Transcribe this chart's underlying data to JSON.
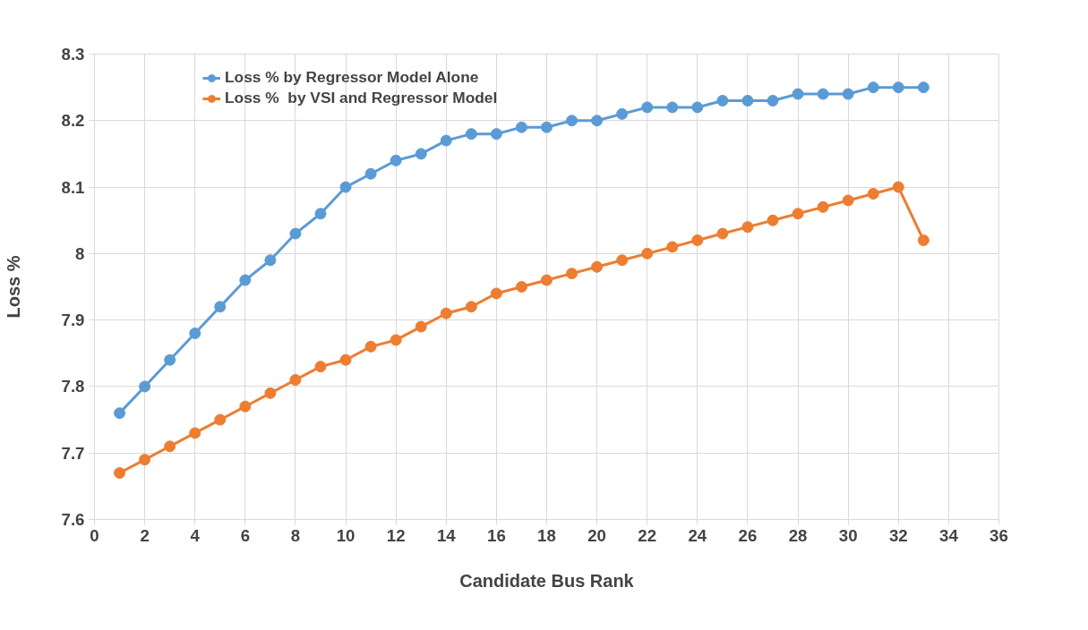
{
  "chart_data": {
    "type": "line",
    "xlabel": "Candidate Bus Rank",
    "ylabel": "Loss %",
    "x": [
      1,
      2,
      3,
      4,
      5,
      6,
      7,
      8,
      9,
      10,
      11,
      12,
      13,
      14,
      15,
      16,
      17,
      18,
      19,
      20,
      21,
      22,
      23,
      24,
      25,
      26,
      27,
      28,
      29,
      30,
      31,
      32,
      33
    ],
    "series": [
      {
        "name": "Loss % by Regressor Model Alone",
        "color": "#5b9bd5",
        "values": [
          7.76,
          7.8,
          7.84,
          7.88,
          7.92,
          7.96,
          7.99,
          8.03,
          8.06,
          8.1,
          8.12,
          8.14,
          8.15,
          8.17,
          8.18,
          8.18,
          8.19,
          8.19,
          8.2,
          8.2,
          8.21,
          8.22,
          8.22,
          8.22,
          8.23,
          8.23,
          8.23,
          8.24,
          8.24,
          8.24,
          8.25,
          8.25,
          8.25
        ]
      },
      {
        "name": "Loss %  by VSI and Regressor Model",
        "color": "#ed7d31",
        "values": [
          7.67,
          7.69,
          7.71,
          7.73,
          7.75,
          7.77,
          7.79,
          7.81,
          7.83,
          7.84,
          7.86,
          7.87,
          7.89,
          7.91,
          7.92,
          7.94,
          7.95,
          7.96,
          7.97,
          7.98,
          7.99,
          8.0,
          8.01,
          8.02,
          8.03,
          8.04,
          8.05,
          8.06,
          8.07,
          8.08,
          8.09,
          8.1,
          8.02
        ]
      }
    ],
    "xlim": [
      0,
      36
    ],
    "xticks": [
      0,
      2,
      4,
      6,
      8,
      10,
      12,
      14,
      16,
      18,
      20,
      22,
      24,
      26,
      28,
      30,
      32,
      34,
      36
    ],
    "ylim": [
      7.6,
      8.3
    ],
    "yticks": [
      {
        "value": 7.6,
        "label": "7.6"
      },
      {
        "value": 7.7,
        "label": "7.7"
      },
      {
        "value": 7.8,
        "label": "7.8"
      },
      {
        "value": 7.9,
        "label": "7.9"
      },
      {
        "value": 8,
        "label": "8"
      },
      {
        "value": 8.1,
        "label": "8.1"
      },
      {
        "value": 8.2,
        "label": "8.2"
      },
      {
        "value": 8.3,
        "label": "8.3"
      }
    ],
    "grid": true,
    "legend": "top",
    "marker": "circle",
    "line_style": "solid"
  }
}
